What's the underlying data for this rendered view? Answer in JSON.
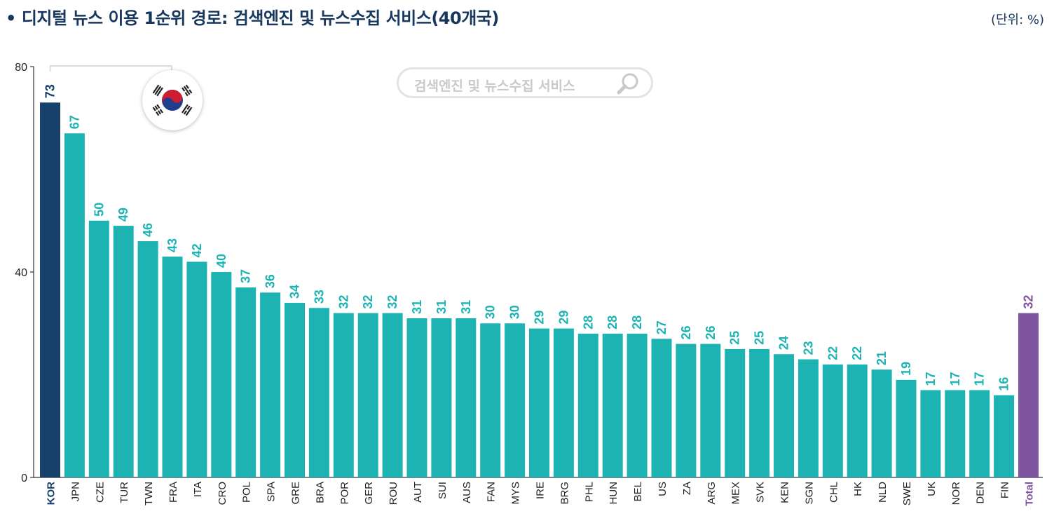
{
  "header": {
    "bullet": "•",
    "title": "디지털 뉴스 이용 1순위 경로: 검색엔진 및 뉴스수집 서비스(40개국)",
    "unit": "(단위: %)"
  },
  "search_box": {
    "label": "검색엔진 및 뉴스수집 서비스",
    "icon": "magnifier-icon"
  },
  "flag_badge": {
    "icon": "korea-flag-icon"
  },
  "colors": {
    "highlight": "#17406b",
    "default": "#1db3b3",
    "total": "#7f55a0",
    "axis": "#333333",
    "bracket": "#c8c8c8"
  },
  "chart_data": {
    "type": "bar",
    "title": "디지털 뉴스 이용 1순위 경로: 검색엔진 및 뉴스수집 서비스(40개국)",
    "xlabel": "",
    "ylabel": "",
    "ylim": [
      0,
      80
    ],
    "yticks": [
      0,
      40,
      80
    ],
    "grid": false,
    "legend": "none",
    "categories": [
      "KOR",
      "JPN",
      "CZE",
      "TUR",
      "TWN",
      "FRA",
      "ITA",
      "CRO",
      "POL",
      "SPA",
      "GRE",
      "BRA",
      "POR",
      "GER",
      "ROU",
      "AUT",
      "SUI",
      "AUS",
      "FAN",
      "MYS",
      "IRE",
      "BRG",
      "PHL",
      "HUN",
      "BEL",
      "US",
      "ZA",
      "ARG",
      "MEX",
      "SVK",
      "KEN",
      "SGN",
      "CHL",
      "HK",
      "NLD",
      "SWE",
      "UK",
      "NOR",
      "DEN",
      "FIN",
      "Total"
    ],
    "values": [
      73,
      67,
      50,
      49,
      46,
      43,
      42,
      40,
      37,
      36,
      34,
      33,
      32,
      32,
      32,
      31,
      31,
      31,
      30,
      30,
      29,
      29,
      28,
      28,
      28,
      27,
      26,
      26,
      25,
      25,
      24,
      23,
      22,
      22,
      21,
      19,
      17,
      17,
      17,
      16,
      32
    ],
    "highlight_category": "KOR",
    "total_category": "Total"
  }
}
